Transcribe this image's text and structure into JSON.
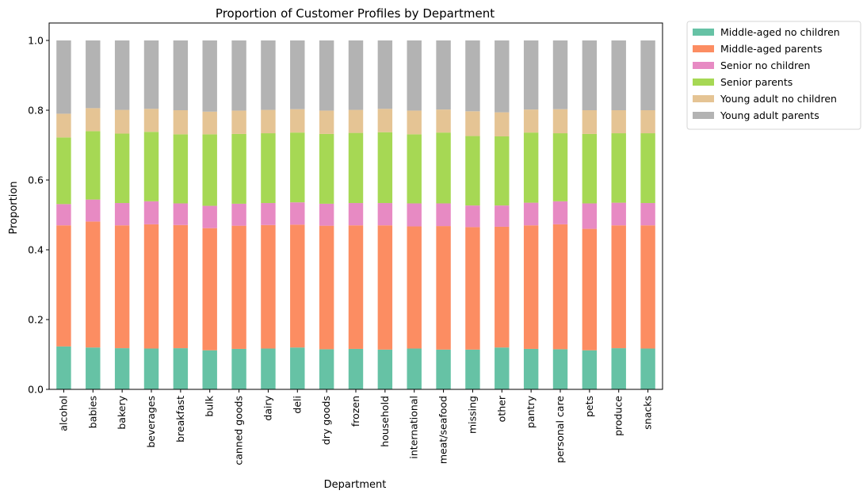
{
  "chart_data": {
    "type": "bar",
    "stacked": true,
    "title": "Proportion of Customer Profiles by Department",
    "xlabel": "Department",
    "ylabel": "Proportion",
    "ylim": [
      0,
      1.05
    ],
    "yticks": [
      "0.0",
      "0.2",
      "0.4",
      "0.6",
      "0.8",
      "1.0"
    ],
    "legend_position": "outside-top-right",
    "categories": [
      "alcohol",
      "babies",
      "bakery",
      "beverages",
      "breakfast",
      "bulk",
      "canned goods",
      "dairy",
      "deli",
      "dry goods",
      "frozen",
      "household",
      "international",
      "meat/seafood",
      "missing",
      "other",
      "pantry",
      "personal care",
      "pets",
      "produce",
      "snacks"
    ],
    "series": [
      {
        "name": "Middle-aged no children",
        "color": "#66c2a5",
        "values": [
          0.123,
          0.12,
          0.118,
          0.117,
          0.118,
          0.112,
          0.116,
          0.117,
          0.12,
          0.115,
          0.116,
          0.114,
          0.117,
          0.114,
          0.114,
          0.12,
          0.116,
          0.115,
          0.112,
          0.118,
          0.117
        ]
      },
      {
        "name": "Middle-aged parents",
        "color": "#fc8d62",
        "values": [
          0.347,
          0.361,
          0.352,
          0.356,
          0.353,
          0.35,
          0.353,
          0.354,
          0.352,
          0.354,
          0.354,
          0.356,
          0.35,
          0.354,
          0.351,
          0.346,
          0.354,
          0.358,
          0.348,
          0.352,
          0.353
        ]
      },
      {
        "name": "Senior no children",
        "color": "#e78ac3",
        "values": [
          0.061,
          0.063,
          0.064,
          0.066,
          0.062,
          0.064,
          0.063,
          0.063,
          0.064,
          0.063,
          0.064,
          0.064,
          0.066,
          0.065,
          0.062,
          0.061,
          0.065,
          0.066,
          0.073,
          0.065,
          0.064
        ]
      },
      {
        "name": "Senior parents",
        "color": "#a6d854",
        "values": [
          0.191,
          0.196,
          0.199,
          0.199,
          0.198,
          0.205,
          0.2,
          0.2,
          0.2,
          0.2,
          0.201,
          0.203,
          0.198,
          0.203,
          0.199,
          0.198,
          0.201,
          0.195,
          0.199,
          0.199,
          0.2
        ]
      },
      {
        "name": "Young adult no children",
        "color": "#e5c494",
        "values": [
          0.068,
          0.066,
          0.068,
          0.066,
          0.069,
          0.065,
          0.067,
          0.067,
          0.067,
          0.067,
          0.066,
          0.067,
          0.068,
          0.066,
          0.071,
          0.069,
          0.066,
          0.069,
          0.068,
          0.066,
          0.066
        ]
      },
      {
        "name": "Young adult parents",
        "color": "#b3b3b3",
        "values": [
          0.21,
          0.194,
          0.199,
          0.196,
          0.2,
          0.204,
          0.201,
          0.199,
          0.197,
          0.201,
          0.199,
          0.196,
          0.201,
          0.198,
          0.203,
          0.206,
          0.198,
          0.197,
          0.2,
          0.2,
          0.2
        ]
      }
    ]
  }
}
